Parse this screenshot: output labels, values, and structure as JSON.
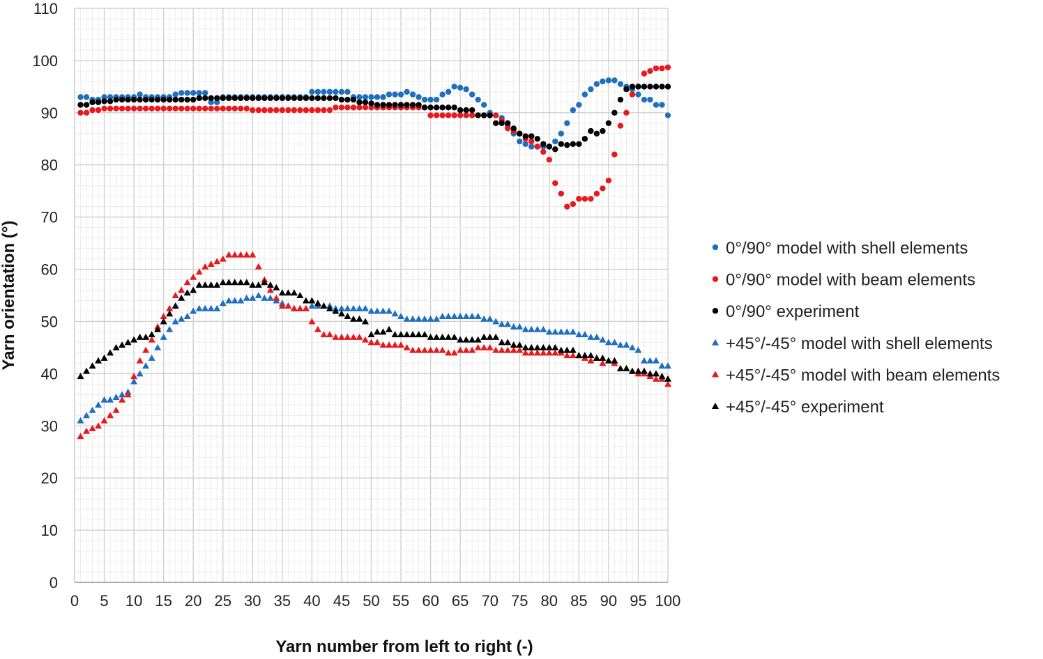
{
  "chart_data": {
    "type": "scatter",
    "xlabel": "Yarn number from left to right (-)",
    "ylabel": "Yarn orientation (°)",
    "xlim": [
      0,
      100
    ],
    "ylim": [
      0,
      110
    ],
    "x_ticks": [
      "0",
      "5",
      "10",
      "15",
      "20",
      "25",
      "30",
      "35",
      "40",
      "45",
      "50",
      "55",
      "60",
      "65",
      "70",
      "75",
      "80",
      "85",
      "90",
      "95",
      "100"
    ],
    "y_ticks": [
      "0",
      "10",
      "20",
      "30",
      "40",
      "50",
      "60",
      "70",
      "80",
      "90",
      "100",
      "110"
    ],
    "grid": true,
    "legend_position": "right",
    "series": [
      {
        "name": "0°/90° model with shell elements",
        "color": "#1f6fbf",
        "marker": "circle",
        "x": [
          1,
          2,
          3,
          4,
          5,
          6,
          7,
          8,
          9,
          10,
          11,
          12,
          13,
          14,
          15,
          16,
          17,
          18,
          19,
          20,
          21,
          22,
          23,
          24,
          25,
          26,
          27,
          28,
          29,
          30,
          31,
          32,
          33,
          34,
          35,
          36,
          37,
          38,
          39,
          40,
          41,
          42,
          43,
          44,
          45,
          46,
          47,
          48,
          49,
          50,
          51,
          52,
          53,
          54,
          55,
          56,
          57,
          58,
          59,
          60,
          61,
          62,
          63,
          64,
          65,
          66,
          67,
          68,
          69,
          70,
          71,
          72,
          73,
          74,
          75,
          76,
          77,
          78,
          79,
          80,
          81,
          82,
          83,
          84,
          85,
          86,
          87,
          88,
          89,
          90,
          91,
          92,
          93,
          94,
          95,
          96,
          97,
          98,
          99,
          100
        ],
        "y": [
          93,
          93,
          92.5,
          92.5,
          93,
          93,
          93,
          93,
          93,
          93,
          93.5,
          93,
          93,
          93,
          93,
          93,
          93.5,
          93.8,
          93.8,
          93.8,
          93.8,
          93.8,
          92,
          92,
          93,
          93,
          93,
          93,
          93,
          93,
          93,
          93,
          93,
          93,
          93,
          93,
          93,
          93,
          93,
          94,
          94,
          94,
          94,
          94,
          94,
          94,
          93,
          93,
          93,
          93,
          93,
          93,
          93.5,
          93.5,
          93.5,
          94,
          93.5,
          93,
          92.5,
          92.5,
          92.5,
          93.5,
          94,
          95,
          94.8,
          94.5,
          93.5,
          92.5,
          91.5,
          90,
          89.5,
          89,
          87.5,
          86,
          84.5,
          84,
          83.5,
          83.5,
          83.5,
          83.5,
          84.5,
          86,
          88,
          90.5,
          91.5,
          93.5,
          94.5,
          95.5,
          96,
          96.2,
          96.2,
          95.5,
          95,
          94.5,
          93.5,
          92.5,
          92.5,
          91.5,
          91.5,
          89.5
        ]
      },
      {
        "name": "0°/90° model with beam elements",
        "color": "#e8191c",
        "marker": "circle",
        "x": [
          1,
          2,
          3,
          4,
          5,
          6,
          7,
          8,
          9,
          10,
          11,
          12,
          13,
          14,
          15,
          16,
          17,
          18,
          19,
          20,
          21,
          22,
          23,
          24,
          25,
          26,
          27,
          28,
          29,
          30,
          31,
          32,
          33,
          34,
          35,
          36,
          37,
          38,
          39,
          40,
          41,
          42,
          43,
          44,
          45,
          46,
          47,
          48,
          49,
          50,
          51,
          52,
          53,
          54,
          55,
          56,
          57,
          58,
          59,
          60,
          61,
          62,
          63,
          64,
          65,
          66,
          67,
          68,
          69,
          70,
          71,
          72,
          73,
          74,
          75,
          76,
          77,
          78,
          79,
          80,
          81,
          82,
          83,
          84,
          85,
          86,
          87,
          88,
          89,
          90,
          91,
          92,
          93,
          94,
          95,
          96,
          97,
          98,
          99,
          100
        ],
        "y": [
          90,
          90,
          90.5,
          90.5,
          90.8,
          90.8,
          90.8,
          90.8,
          90.8,
          90.8,
          90.8,
          90.8,
          90.8,
          90.8,
          90.8,
          90.8,
          90.8,
          90.8,
          90.8,
          90.8,
          90.8,
          90.8,
          90.8,
          90.8,
          90.8,
          90.8,
          90.8,
          90.8,
          90.8,
          90.5,
          90.5,
          90.5,
          90.5,
          90.5,
          90.5,
          90.5,
          90.5,
          90.5,
          90.5,
          90.5,
          90.5,
          90.5,
          90.5,
          91,
          91,
          91,
          91,
          91,
          91,
          91,
          91,
          91,
          91,
          91,
          91,
          91,
          91,
          91,
          91,
          89.5,
          89.5,
          89.5,
          89.5,
          89.5,
          89.5,
          89.5,
          89.5,
          89.5,
          89.5,
          89.5,
          89.5,
          88.5,
          87,
          86.5,
          86,
          85,
          84.5,
          83.5,
          82.5,
          81,
          76.5,
          74.5,
          72,
          72.5,
          73.5,
          73.5,
          73.5,
          74.5,
          75.5,
          77,
          82,
          87.5,
          90,
          93.5,
          95,
          97.5,
          98,
          98.5,
          98.5,
          98.7
        ]
      },
      {
        "name": "0°/90° experiment",
        "color": "#000000",
        "marker": "circle",
        "x": [
          1,
          2,
          3,
          4,
          5,
          6,
          7,
          8,
          9,
          10,
          11,
          12,
          13,
          14,
          15,
          16,
          17,
          18,
          19,
          20,
          21,
          22,
          23,
          24,
          25,
          26,
          27,
          28,
          29,
          30,
          31,
          32,
          33,
          34,
          35,
          36,
          37,
          38,
          39,
          40,
          41,
          42,
          43,
          44,
          45,
          46,
          47,
          48,
          49,
          50,
          51,
          52,
          53,
          54,
          55,
          56,
          57,
          58,
          59,
          60,
          61,
          62,
          63,
          64,
          65,
          66,
          67,
          68,
          69,
          70,
          71,
          72,
          73,
          74,
          75,
          76,
          77,
          78,
          79,
          80,
          81,
          82,
          83,
          84,
          85,
          86,
          87,
          88,
          89,
          90,
          91,
          92,
          93,
          94,
          95,
          96,
          97,
          98,
          99,
          100
        ],
        "y": [
          91.5,
          91.5,
          92,
          92,
          92.2,
          92.2,
          92.5,
          92.5,
          92.5,
          92.5,
          92.5,
          92.5,
          92.5,
          92.5,
          92.5,
          92.5,
          92.5,
          92.5,
          92.5,
          92.5,
          92.8,
          92.8,
          92.8,
          92.8,
          92.8,
          92.8,
          92.8,
          92.8,
          92.8,
          92.8,
          92.8,
          92.8,
          92.8,
          92.8,
          92.8,
          92.8,
          92.8,
          92.8,
          92.8,
          92.8,
          92.8,
          92.8,
          92.8,
          92.8,
          92.5,
          92.5,
          92.5,
          92,
          92,
          91.8,
          91.5,
          91.5,
          91.5,
          91.5,
          91.5,
          91.5,
          91.5,
          91.5,
          91,
          91,
          91,
          91,
          91,
          91,
          90.5,
          90.5,
          90.5,
          89.5,
          89.5,
          89.5,
          88,
          88,
          88,
          87,
          86,
          85.5,
          85.5,
          85,
          84,
          83.5,
          83,
          84,
          83.8,
          84,
          84,
          85,
          86.5,
          86,
          86.5,
          88,
          90,
          92.5,
          94.5,
          95,
          95,
          95,
          95,
          95,
          95,
          95
        ]
      },
      {
        "name": "+45°/-45° model with shell elements",
        "color": "#1f6fbf",
        "marker": "triangle",
        "x": [
          1,
          2,
          3,
          4,
          5,
          6,
          7,
          8,
          9,
          10,
          11,
          12,
          13,
          14,
          15,
          16,
          17,
          18,
          19,
          20,
          21,
          22,
          23,
          24,
          25,
          26,
          27,
          28,
          29,
          30,
          31,
          32,
          33,
          34,
          35,
          36,
          37,
          38,
          39,
          40,
          41,
          42,
          43,
          44,
          45,
          46,
          47,
          48,
          49,
          50,
          51,
          52,
          53,
          54,
          55,
          56,
          57,
          58,
          59,
          60,
          61,
          62,
          63,
          64,
          65,
          66,
          67,
          68,
          69,
          70,
          71,
          72,
          73,
          74,
          75,
          76,
          77,
          78,
          79,
          80,
          81,
          82,
          83,
          84,
          85,
          86,
          87,
          88,
          89,
          90,
          91,
          92,
          93,
          94,
          95,
          96,
          97,
          98,
          99,
          100
        ],
        "y": [
          31,
          32,
          33,
          34,
          35,
          35,
          35.5,
          36,
          36.5,
          38.5,
          40,
          41.5,
          43,
          45,
          47,
          48.5,
          50,
          50.5,
          51,
          52,
          52.5,
          52.5,
          52.5,
          52.5,
          53.5,
          54,
          54,
          54,
          54.5,
          54.5,
          55,
          54.5,
          54.5,
          54,
          53.5,
          53,
          52.5,
          52.5,
          52.5,
          53,
          53,
          53,
          53,
          52.5,
          52.5,
          52.5,
          52.5,
          52.5,
          52.5,
          52,
          52,
          52,
          52,
          51.5,
          51,
          50.5,
          50.5,
          50.5,
          50.5,
          50.5,
          50.5,
          51,
          51,
          51,
          51,
          51,
          51,
          51,
          50.5,
          50.5,
          50,
          49.5,
          49.5,
          49,
          49,
          48.5,
          48.5,
          48.5,
          48.5,
          48,
          48,
          48,
          48,
          48,
          47.5,
          47.5,
          47,
          47,
          46.5,
          46,
          46,
          45.5,
          45.5,
          45,
          44.5,
          42.5,
          42.5,
          42.5,
          41.5,
          41.5
        ]
      },
      {
        "name": "+45°/-45° model with beam elements",
        "color": "#e8191c",
        "marker": "triangle",
        "x": [
          1,
          2,
          3,
          4,
          5,
          6,
          7,
          8,
          9,
          10,
          11,
          12,
          13,
          14,
          15,
          16,
          17,
          18,
          19,
          20,
          21,
          22,
          23,
          24,
          25,
          26,
          27,
          28,
          29,
          30,
          31,
          32,
          33,
          34,
          35,
          36,
          37,
          38,
          39,
          40,
          41,
          42,
          43,
          44,
          45,
          46,
          47,
          48,
          49,
          50,
          51,
          52,
          53,
          54,
          55,
          56,
          57,
          58,
          59,
          60,
          61,
          62,
          63,
          64,
          65,
          66,
          67,
          68,
          69,
          70,
          71,
          72,
          73,
          74,
          75,
          76,
          77,
          78,
          79,
          80,
          81,
          82,
          83,
          84,
          85,
          86,
          87,
          88,
          89,
          90,
          91,
          92,
          93,
          94,
          95,
          96,
          97,
          98,
          99,
          100
        ],
        "y": [
          28,
          29,
          29.5,
          30,
          31,
          32,
          33,
          35,
          36,
          39.5,
          42.5,
          44.5,
          46.5,
          49,
          51,
          52.5,
          55,
          56,
          57.5,
          58.5,
          59.5,
          60.5,
          61,
          61.5,
          62,
          62.8,
          62.8,
          62.8,
          62.8,
          62.8,
          60.5,
          58,
          56,
          54.5,
          53,
          53,
          52.5,
          52.5,
          52.5,
          50,
          48.5,
          47.5,
          47.5,
          47,
          47,
          47,
          47,
          47,
          46.5,
          46,
          46,
          45.5,
          45.5,
          45.5,
          45.5,
          45,
          44.5,
          44.5,
          44.5,
          44.5,
          44.5,
          44.5,
          44,
          44,
          44.5,
          44.5,
          44.5,
          45,
          45,
          45,
          44.5,
          44.5,
          44.5,
          44.5,
          44.5,
          44,
          44,
          44,
          44,
          44,
          44,
          44,
          43.5,
          43.5,
          43.5,
          43,
          42.5,
          43,
          42,
          42.5,
          42,
          41,
          41,
          40.5,
          40,
          40,
          39.5,
          39,
          39,
          38
        ]
      },
      {
        "name": "+45°/-45° experiment",
        "color": "#000000",
        "marker": "triangle",
        "x": [
          1,
          2,
          3,
          4,
          5,
          6,
          7,
          8,
          9,
          10,
          11,
          12,
          13,
          14,
          15,
          16,
          17,
          18,
          19,
          20,
          21,
          22,
          23,
          24,
          25,
          26,
          27,
          28,
          29,
          30,
          31,
          32,
          33,
          34,
          35,
          36,
          37,
          38,
          39,
          40,
          41,
          42,
          43,
          44,
          45,
          46,
          47,
          48,
          49,
          50,
          51,
          52,
          53,
          54,
          55,
          56,
          57,
          58,
          59,
          60,
          61,
          62,
          63,
          64,
          65,
          66,
          67,
          68,
          69,
          70,
          71,
          72,
          73,
          74,
          75,
          76,
          77,
          78,
          79,
          80,
          81,
          82,
          83,
          84,
          85,
          86,
          87,
          88,
          89,
          90,
          91,
          92,
          93,
          94,
          95,
          96,
          97,
          98,
          99,
          100
        ],
        "y": [
          39.5,
          40.5,
          41.5,
          42.5,
          43,
          44,
          45,
          45.5,
          46,
          46.5,
          47,
          47,
          47.5,
          48.5,
          50,
          51.5,
          53,
          54.5,
          55.5,
          56,
          57,
          57,
          57,
          57,
          57.5,
          57.5,
          57.5,
          57.5,
          57.5,
          57,
          57,
          57.5,
          57,
          56.5,
          55.5,
          55.5,
          55.5,
          55,
          54,
          54,
          53.5,
          53,
          52.5,
          52,
          51.5,
          51,
          50.5,
          50.5,
          50,
          47.5,
          48,
          48,
          48.5,
          47.5,
          47.5,
          47.5,
          47.5,
          47.5,
          47.5,
          47,
          47,
          47,
          47,
          47,
          46.5,
          46.5,
          46.5,
          46.5,
          47,
          47,
          47,
          46,
          46,
          45.5,
          45.5,
          45,
          45,
          45,
          45,
          45,
          45,
          44.5,
          44.5,
          44.5,
          43.5,
          43.5,
          43.5,
          43,
          43,
          42.5,
          42.5,
          41,
          41,
          40.5,
          40.5,
          40.5,
          40,
          40,
          39.5,
          39
        ]
      }
    ]
  }
}
